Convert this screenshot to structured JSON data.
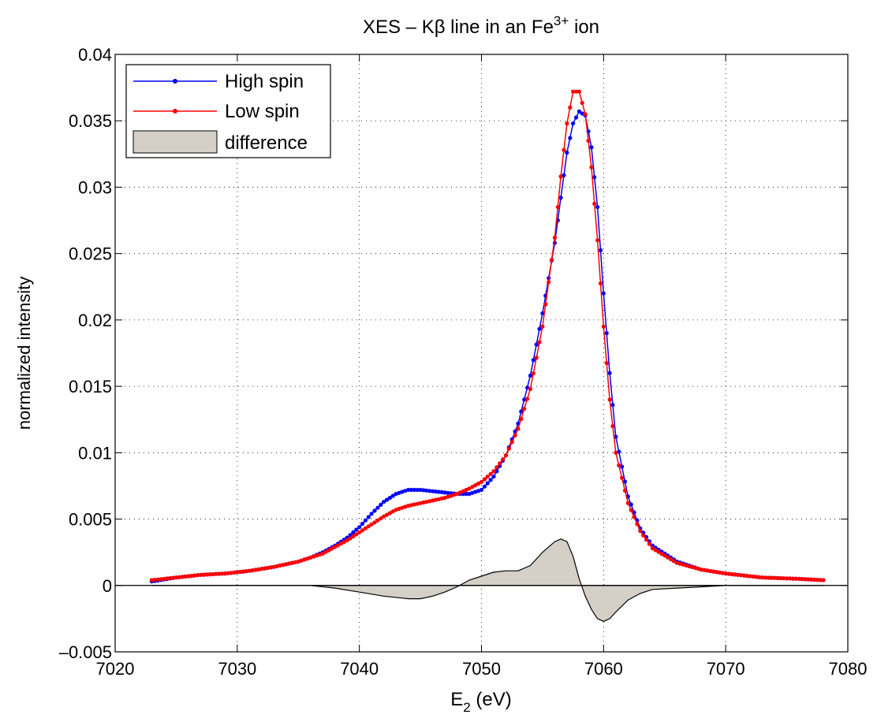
{
  "chart_data": {
    "type": "line",
    "title": {
      "prefix": "XES – Kβ line in an Fe",
      "superscript": "3+",
      "suffix": " ion"
    },
    "xlabel": {
      "base": "E",
      "subscript": "2",
      "suffix": " (eV)"
    },
    "ylabel": "normalized intensity",
    "xlim": [
      7020,
      7080
    ],
    "ylim": [
      -0.005,
      0.04
    ],
    "xticks": [
      7020,
      7030,
      7040,
      7050,
      7060,
      7070,
      7080
    ],
    "xtick_labels": [
      "7020",
      "7030",
      "7040",
      "7050",
      "7060",
      "7070",
      "7080"
    ],
    "yticks": [
      -0.005,
      0,
      0.005,
      0.01,
      0.015,
      0.02,
      0.025,
      0.03,
      0.035,
      0.04
    ],
    "ytick_labels": [
      "–0.005",
      "0",
      "0.005",
      "0.01",
      "0.015",
      "0.02",
      "0.025",
      "0.03",
      "0.035",
      "0.04"
    ],
    "grid": true,
    "legend_position": "top-left",
    "zero_line": true,
    "series": [
      {
        "name": "High spin",
        "color": "#0000ff",
        "marker": "dot",
        "x": [
          7023,
          7025,
          7027,
          7029,
          7031,
          7033,
          7035,
          7036,
          7037,
          7038,
          7039,
          7040,
          7041,
          7042,
          7043,
          7044,
          7045,
          7046,
          7047,
          7048,
          7049,
          7050,
          7051,
          7052,
          7053,
          7054,
          7055,
          7056,
          7056.5,
          7057,
          7057.5,
          7058,
          7058.5,
          7059,
          7059.5,
          7060,
          7060.5,
          7061,
          7062,
          7063,
          7064,
          7066,
          7068,
          7070,
          7073,
          7076,
          7078
        ],
        "y": [
          0.0003,
          0.0006,
          0.0008,
          0.0009,
          0.0011,
          0.0014,
          0.0018,
          0.0021,
          0.0025,
          0.003,
          0.0036,
          0.0044,
          0.0054,
          0.0063,
          0.0069,
          0.0072,
          0.0072,
          0.0071,
          0.007,
          0.0069,
          0.0069,
          0.0072,
          0.0082,
          0.0098,
          0.0122,
          0.0158,
          0.0205,
          0.0258,
          0.0292,
          0.0326,
          0.0348,
          0.0357,
          0.0354,
          0.033,
          0.0285,
          0.022,
          0.016,
          0.0112,
          0.0067,
          0.0043,
          0.003,
          0.0018,
          0.0012,
          0.0009,
          0.0006,
          0.0005,
          0.0004
        ]
      },
      {
        "name": "Low spin",
        "color": "#ff0000",
        "marker": "dot",
        "x": [
          7023,
          7025,
          7027,
          7029,
          7031,
          7033,
          7035,
          7036,
          7037,
          7038,
          7039,
          7040,
          7041,
          7042,
          7043,
          7044,
          7045,
          7046,
          7047,
          7048,
          7049,
          7050,
          7051,
          7052,
          7053,
          7054,
          7055,
          7056,
          7056.5,
          7057,
          7057.5,
          7058,
          7058.5,
          7059,
          7059.5,
          7060,
          7060.5,
          7061,
          7062,
          7063,
          7064,
          7066,
          7068,
          7070,
          7073,
          7076,
          7078
        ],
        "y": [
          0.0004,
          0.0006,
          0.0008,
          0.0009,
          0.0011,
          0.0014,
          0.0018,
          0.0021,
          0.0024,
          0.0029,
          0.0034,
          0.004,
          0.0046,
          0.0052,
          0.0057,
          0.006,
          0.0062,
          0.0064,
          0.0066,
          0.0069,
          0.0073,
          0.0078,
          0.0086,
          0.0098,
          0.0118,
          0.0148,
          0.0195,
          0.0262,
          0.0308,
          0.0348,
          0.0372,
          0.0372,
          0.0355,
          0.0315,
          0.026,
          0.0195,
          0.014,
          0.01,
          0.0062,
          0.0041,
          0.0028,
          0.0017,
          0.0012,
          0.0009,
          0.0006,
          0.0005,
          0.0004
        ]
      },
      {
        "name": "difference",
        "type": "area",
        "fill": "#d4d0c8",
        "stroke": "#000000",
        "x": [
          7023,
          7030,
          7035,
          7036,
          7038,
          7040,
          7042,
          7044,
          7045,
          7046,
          7047,
          7048,
          7049,
          7050,
          7051,
          7052,
          7053,
          7054,
          7055,
          7056,
          7056.5,
          7057,
          7057.5,
          7058,
          7058.5,
          7059,
          7059.5,
          7060,
          7060.5,
          7061,
          7062,
          7063,
          7064,
          7066,
          7068,
          7070,
          7072,
          7075,
          7078
        ],
        "y": [
          0,
          0,
          0,
          0,
          -0.0002,
          -0.0005,
          -0.0008,
          -0.001,
          -0.001,
          -0.0008,
          -0.0005,
          -0.0001,
          0.0004,
          0.0007,
          0.001,
          0.0011,
          0.0011,
          0.0015,
          0.0025,
          0.0033,
          0.0035,
          0.0033,
          0.0022,
          0.0005,
          -0.0008,
          -0.0018,
          -0.0025,
          -0.0027,
          -0.0025,
          -0.002,
          -0.0011,
          -0.0006,
          -0.0003,
          -0.0002,
          -0.0001,
          0,
          0,
          0,
          0
        ]
      }
    ]
  }
}
